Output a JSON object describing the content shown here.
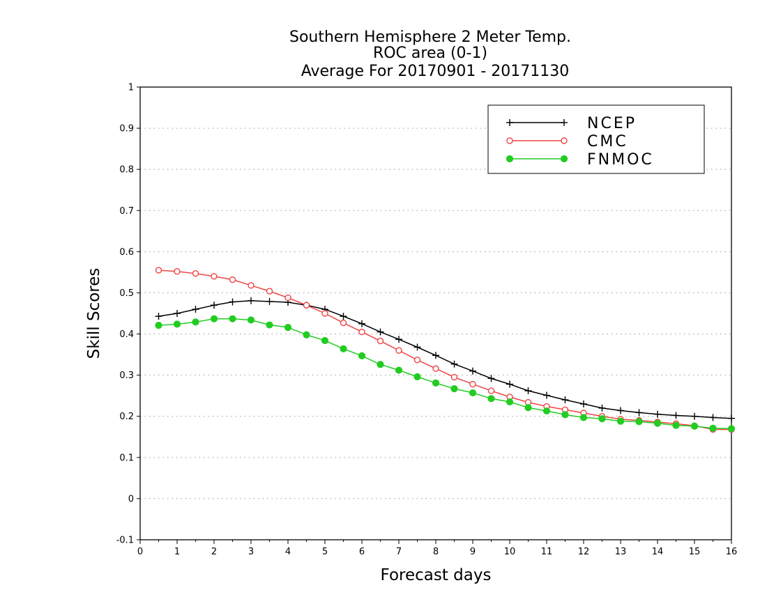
{
  "chart_data": {
    "type": "line",
    "title": [
      "Southern Hemisphere 2 Meter Temp.",
      "ROC area (0-1)",
      "Average For 20170901 - 20171130"
    ],
    "xlabel": "Forecast days",
    "ylabel": "Skill Scores",
    "xlim": [
      0,
      16
    ],
    "ylim": [
      -0.1,
      1
    ],
    "x_ticks": [
      0,
      1,
      2,
      3,
      4,
      5,
      6,
      7,
      8,
      9,
      10,
      11,
      12,
      13,
      14,
      15,
      16
    ],
    "y_ticks": [
      -0.1,
      0,
      0.1,
      0.2,
      0.3,
      0.4,
      0.5,
      0.6,
      0.7,
      0.8,
      0.9,
      1
    ],
    "y_tick_labels": [
      "-0.1",
      "0",
      "0.1",
      "0.2",
      "0.3",
      "0.4",
      "0.5",
      "0.6",
      "0.7",
      "0.8",
      "0.9",
      "1"
    ],
    "grid": "horizontal dotted",
    "legend_position": "top-right",
    "x": [
      0.5,
      1,
      1.5,
      2,
      2.5,
      3,
      3.5,
      4,
      4.5,
      5,
      5.5,
      6,
      6.5,
      7,
      7.5,
      8,
      8.5,
      9,
      9.5,
      10,
      10.5,
      11,
      11.5,
      12,
      12.5,
      13,
      13.5,
      14,
      14.5,
      15,
      15.5,
      16
    ],
    "series": [
      {
        "name": "NCEP",
        "color": "#000000",
        "marker": "plus",
        "values": [
          0.443,
          0.45,
          0.46,
          0.47,
          0.478,
          0.481,
          0.479,
          0.477,
          0.47,
          0.46,
          0.443,
          0.425,
          0.405,
          0.387,
          0.368,
          0.348,
          0.327,
          0.31,
          0.292,
          0.278,
          0.262,
          0.251,
          0.24,
          0.23,
          0.22,
          0.214,
          0.209,
          0.205,
          0.202,
          0.2,
          0.197,
          0.195
        ]
      },
      {
        "name": "CMC",
        "color": "#ee4444",
        "marker": "open-circle",
        "values": [
          0.555,
          0.552,
          0.547,
          0.54,
          0.532,
          0.518,
          0.504,
          0.488,
          0.47,
          0.45,
          0.427,
          0.405,
          0.383,
          0.36,
          0.337,
          0.316,
          0.295,
          0.278,
          0.262,
          0.247,
          0.234,
          0.224,
          0.216,
          0.208,
          0.2,
          0.193,
          0.19,
          0.186,
          0.182,
          0.177,
          0.168,
          0.168
        ]
      },
      {
        "name": "FNMOC",
        "color": "#22cc22",
        "marker": "filled-circle",
        "values": [
          0.421,
          0.424,
          0.429,
          0.437,
          0.437,
          0.434,
          0.422,
          0.416,
          0.398,
          0.384,
          0.364,
          0.347,
          0.326,
          0.312,
          0.296,
          0.281,
          0.267,
          0.257,
          0.243,
          0.235,
          0.221,
          0.213,
          0.204,
          0.197,
          0.194,
          0.188,
          0.187,
          0.183,
          0.178,
          0.176,
          0.171,
          0.17
        ]
      }
    ]
  }
}
